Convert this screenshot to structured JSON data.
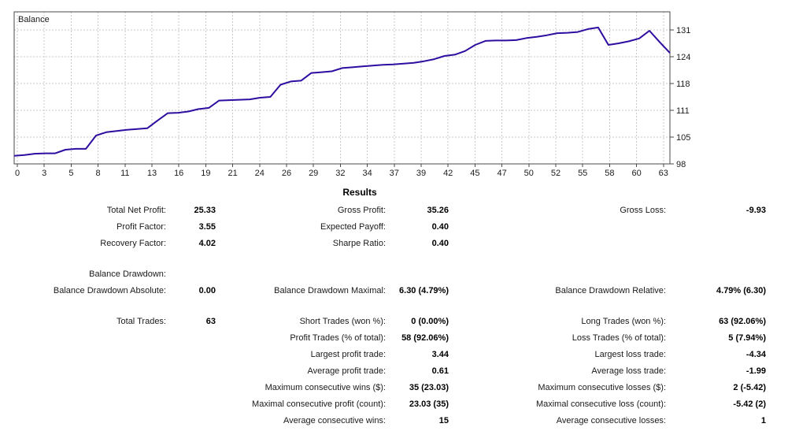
{
  "chart_data": {
    "type": "line",
    "title": "Balance",
    "xlabel": "",
    "ylabel": "",
    "x_tick_labels": [
      "0",
      "3",
      "5",
      "8",
      "11",
      "13",
      "16",
      "19",
      "21",
      "24",
      "26",
      "29",
      "32",
      "34",
      "37",
      "39",
      "42",
      "45",
      "47",
      "50",
      "52",
      "55",
      "58",
      "60",
      "63"
    ],
    "y_tick_labels": [
      "131",
      "124",
      "118",
      "111",
      "105",
      "98"
    ],
    "ylim": [
      98,
      135.46
    ],
    "grid": "dashed",
    "legend_position": "none",
    "series": [
      {
        "name": "Balance",
        "color": "#2e0da0",
        "values": [
          100.0,
          100.2,
          100.5,
          100.6,
          100.6,
          101.5,
          101.7,
          101.7,
          105.0,
          105.8,
          106.1,
          106.4,
          106.6,
          106.8,
          108.7,
          110.5,
          110.6,
          110.9,
          111.5,
          111.8,
          113.6,
          113.7,
          113.8,
          113.9,
          114.3,
          114.5,
          117.5,
          118.3,
          118.5,
          120.4,
          120.6,
          120.8,
          121.6,
          121.8,
          122.0,
          122.2,
          122.4,
          122.5,
          122.7,
          122.9,
          123.3,
          123.8,
          124.6,
          124.9,
          125.8,
          127.3,
          128.3,
          128.4,
          128.4,
          128.5,
          129.0,
          129.3,
          129.7,
          130.2,
          130.3,
          130.5,
          131.2,
          131.6,
          127.3,
          127.7,
          128.2,
          128.9,
          130.8,
          128.0,
          125.33
        ]
      }
    ],
    "colors": {
      "frame": "#4a4a4a",
      "grid": "#c9c9c9",
      "axis_text": "#1c1c1c"
    }
  },
  "results": {
    "title": "Results",
    "rows": [
      {
        "cells": [
          {
            "col": 0,
            "label": "Total Net Profit:",
            "value": "25.33"
          },
          {
            "col": 1,
            "label": "Gross Profit:",
            "value": "35.26"
          },
          {
            "col": 2,
            "label": "Gross Loss:",
            "value": "-9.93"
          }
        ]
      },
      {
        "cells": [
          {
            "col": 0,
            "label": "Profit Factor:",
            "value": "3.55"
          },
          {
            "col": 1,
            "label": "Expected Payoff:",
            "value": "0.40"
          }
        ]
      },
      {
        "cells": [
          {
            "col": 0,
            "label": "Recovery Factor:",
            "value": "4.02"
          },
          {
            "col": 1,
            "label": "Sharpe Ratio:",
            "value": "0.40"
          }
        ]
      },
      {
        "cells": [
          {
            "col": 0,
            "label": "Balance Drawdown:",
            "value": ""
          }
        ]
      },
      {
        "cells": [
          {
            "col": 0,
            "label": "Balance Drawdown Absolute:",
            "value": "0.00"
          },
          {
            "col": 1,
            "label": "Balance Drawdown Maximal:",
            "value": "6.30 (4.79%)"
          },
          {
            "col": 2,
            "label": "Balance Drawdown Relative:",
            "value": "4.79% (6.30)"
          }
        ]
      },
      {
        "cells": [
          {
            "col": 0,
            "label": "Total Trades:",
            "value": "63"
          },
          {
            "col": 1,
            "label": "Short Trades (won %):",
            "value": "0 (0.00%)"
          },
          {
            "col": 2,
            "label": "Long Trades (won %):",
            "value": "63 (92.06%)"
          }
        ]
      },
      {
        "cells": [
          {
            "col": 1,
            "label": "Profit Trades (% of total):",
            "value": "58 (92.06%)"
          },
          {
            "col": 2,
            "label": "Loss Trades (% of total):",
            "value": "5 (7.94%)"
          }
        ]
      },
      {
        "cells": [
          {
            "col": 1,
            "label": "Largest profit trade:",
            "value": "3.44"
          },
          {
            "col": 2,
            "label": "Largest loss trade:",
            "value": "-4.34"
          }
        ]
      },
      {
        "cells": [
          {
            "col": 1,
            "label": "Average profit trade:",
            "value": "0.61"
          },
          {
            "col": 2,
            "label": "Average loss trade:",
            "value": "-1.99"
          }
        ]
      },
      {
        "cells": [
          {
            "col": 1,
            "label": "Maximum consecutive wins ($):",
            "value": "35 (23.03)"
          },
          {
            "col": 2,
            "label": "Maximum consecutive losses ($):",
            "value": "2 (-5.42)"
          }
        ]
      },
      {
        "cells": [
          {
            "col": 1,
            "label": "Maximal consecutive profit (count):",
            "value": "23.03 (35)"
          },
          {
            "col": 2,
            "label": "Maximal consecutive loss (count):",
            "value": "-5.42 (2)"
          }
        ]
      },
      {
        "cells": [
          {
            "col": 1,
            "label": "Average consecutive wins:",
            "value": "15"
          },
          {
            "col": 2,
            "label": "Average consecutive losses:",
            "value": "1"
          }
        ]
      }
    ]
  }
}
